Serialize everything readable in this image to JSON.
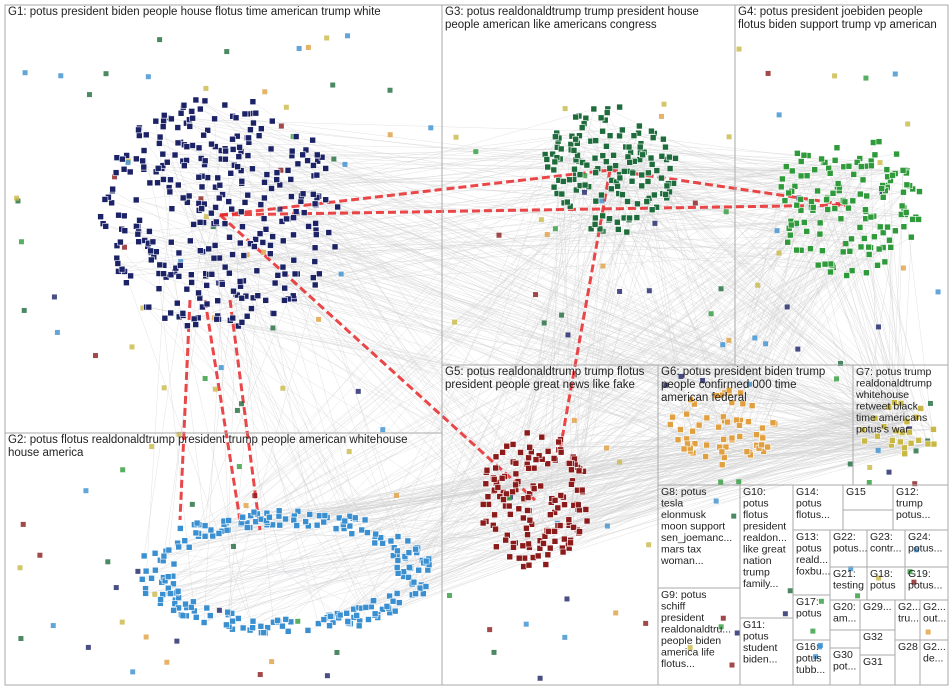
{
  "panels": [
    {
      "lines": [
        "G1: potus president biden people house flotus time american trump white"
      ]
    },
    {
      "lines": [
        "G3: potus realdonaldtrump trump president house",
        "people american like americans congress"
      ]
    },
    {
      "lines": [
        "G4: potus president joebiden people",
        "flotus biden support trump vp american"
      ]
    },
    {
      "lines": [
        "G2: potus flotus realdonaldtrump president trump people american whitehouse",
        "house america"
      ]
    },
    {
      "lines": [
        "G5: potus realdonaldtrump trump flotus",
        "president people great news like fake"
      ]
    },
    {
      "lines": [
        "G6: potus president biden trump",
        "people confirmed 000 time",
        "american federal"
      ]
    },
    {
      "lines": [
        "G7: potus trump",
        "realdonaldtrump",
        "whitehouse",
        "retweet black",
        "time americans",
        "potus's war"
      ]
    },
    {
      "lines": [
        "G8: potus",
        "tesla",
        "elonmusk",
        "moon support",
        "sen_joemanc...",
        "mars tax",
        "woman..."
      ]
    },
    {
      "lines": [
        "G9: potus",
        "schiff",
        "president",
        "realdonaldtru...",
        "people biden",
        "america life",
        "flotus..."
      ]
    },
    {
      "lines": [
        "G10:",
        "potus",
        "flotus",
        "president",
        "realdon...",
        "like great",
        "nation",
        "trump",
        "family..."
      ]
    },
    {
      "lines": [
        "G11:",
        "potus",
        "student",
        "biden..."
      ]
    },
    {
      "lines": [
        "G14:",
        "potus",
        "flotus..."
      ]
    },
    {
      "lines": [
        "G15"
      ]
    },
    {
      "lines": [
        "G12:",
        "trump",
        "potus..."
      ]
    },
    {
      "lines": [
        "G13:",
        "potus",
        "reald...",
        "foxbu..."
      ]
    },
    {
      "lines": [
        "G22:",
        "potus..."
      ]
    },
    {
      "lines": [
        "G23:",
        "contr..."
      ]
    },
    {
      "lines": [
        "G24:",
        "potus..."
      ]
    },
    {
      "lines": [
        "G21:",
        "testing"
      ]
    },
    {
      "lines": [
        "G18:",
        "potus"
      ]
    },
    {
      "lines": [
        "G19:",
        "potus..."
      ]
    },
    {
      "lines": [
        "G17:",
        "potus"
      ]
    },
    {
      "lines": [
        "G20:",
        "am..."
      ]
    },
    {
      "lines": [
        "G29..."
      ]
    },
    {
      "lines": [
        "G2...",
        "tru..."
      ]
    },
    {
      "lines": [
        "G2...",
        "out..."
      ]
    },
    {
      "lines": [
        "G32"
      ]
    },
    {
      "lines": [
        "G16:",
        "potus",
        "tubb..."
      ]
    },
    {
      "lines": [
        "G30",
        "pot..."
      ]
    },
    {
      "lines": [
        "G31"
      ]
    },
    {
      "lines": [
        "G28"
      ]
    },
    {
      "lines": [
        "G2...",
        "de..."
      ]
    }
  ]
}
